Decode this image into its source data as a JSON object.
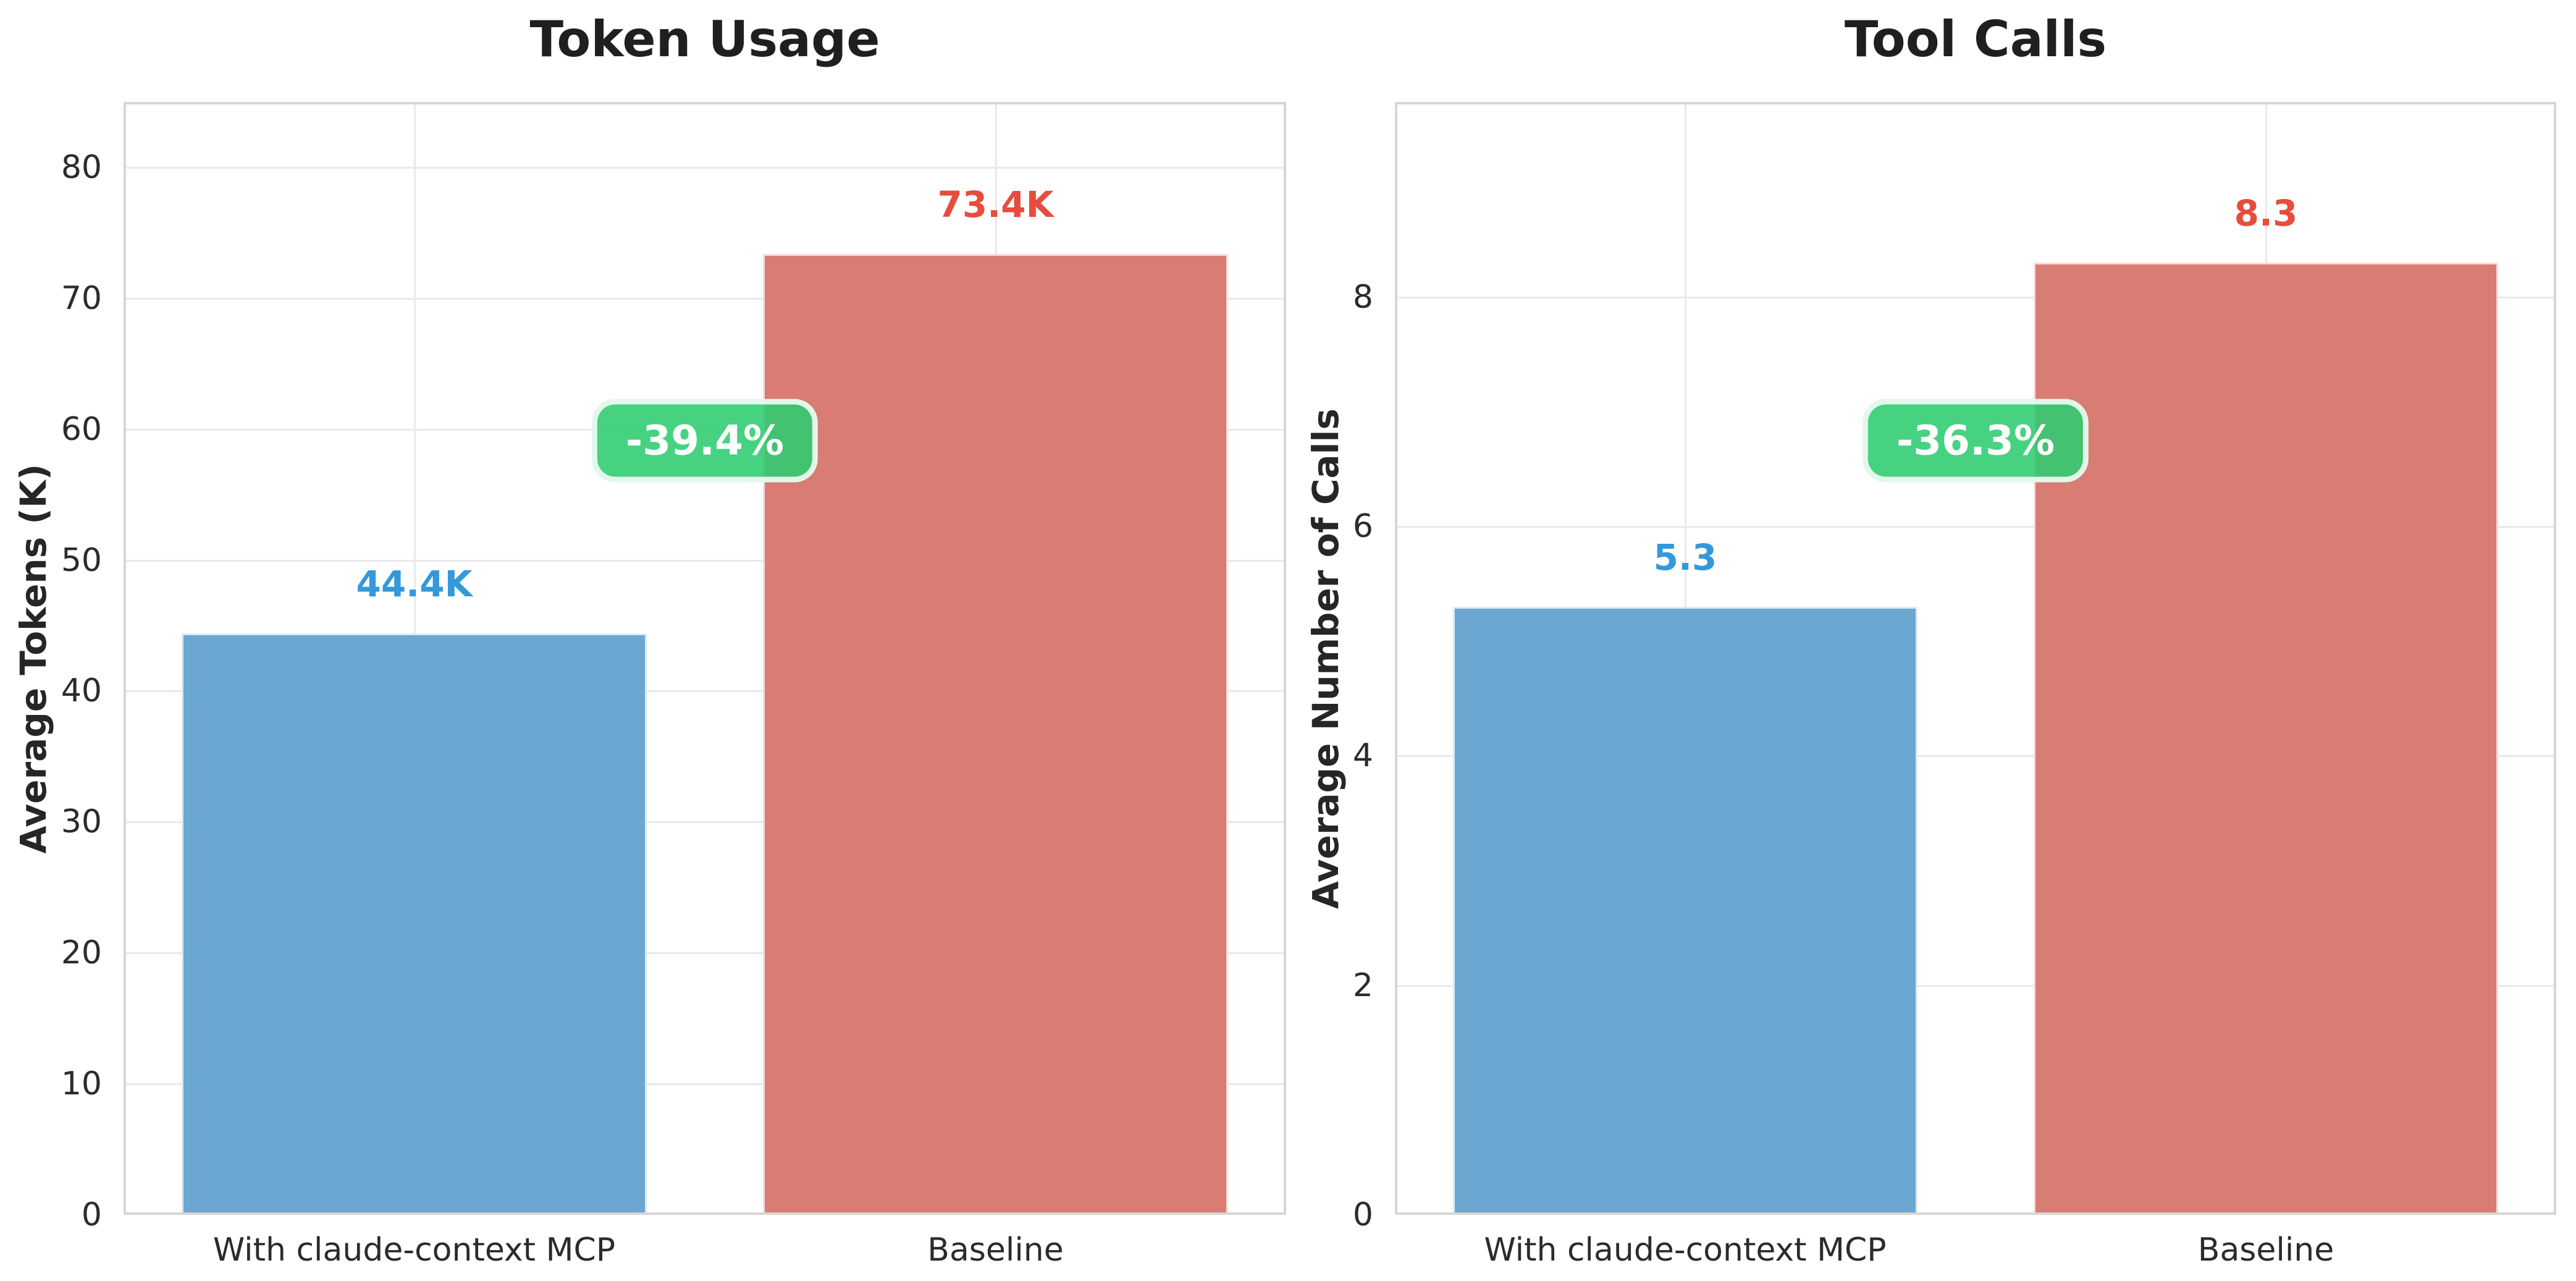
{
  "chart_data": [
    {
      "type": "bar",
      "title": "Token Usage",
      "xlabel": "",
      "ylabel": "Average Tokens (K)",
      "categories": [
        "With claude-context MCP",
        "Baseline"
      ],
      "values": [
        44.4,
        73.4
      ],
      "value_labels": [
        "44.4K",
        "73.4K"
      ],
      "bar_colors": [
        "#6ca7d1",
        "#d97c74"
      ],
      "value_label_colors": [
        "#3498db",
        "#e74c3c"
      ],
      "yticks": [
        0,
        10,
        20,
        30,
        40,
        50,
        60,
        70,
        80
      ],
      "ylim": [
        0,
        85
      ],
      "grid": true,
      "legend": false,
      "annotation": {
        "text": "-39.4%",
        "color": "#2ecc71",
        "text_color": "#ffffff"
      }
    },
    {
      "type": "bar",
      "title": "Tool Calls",
      "xlabel": "",
      "ylabel": "Average Number of Calls",
      "categories": [
        "With claude-context MCP",
        "Baseline"
      ],
      "values": [
        5.3,
        8.3
      ],
      "value_labels": [
        "5.3",
        "8.3"
      ],
      "bar_colors": [
        "#6ca7d1",
        "#d97c74"
      ],
      "value_label_colors": [
        "#3498db",
        "#e74c3c"
      ],
      "yticks": [
        0,
        2,
        4,
        6,
        8
      ],
      "ylim": [
        0,
        9.7
      ],
      "grid": true,
      "legend": false,
      "annotation": {
        "text": "-36.3%",
        "color": "#2ecc71",
        "text_color": "#ffffff"
      }
    }
  ]
}
